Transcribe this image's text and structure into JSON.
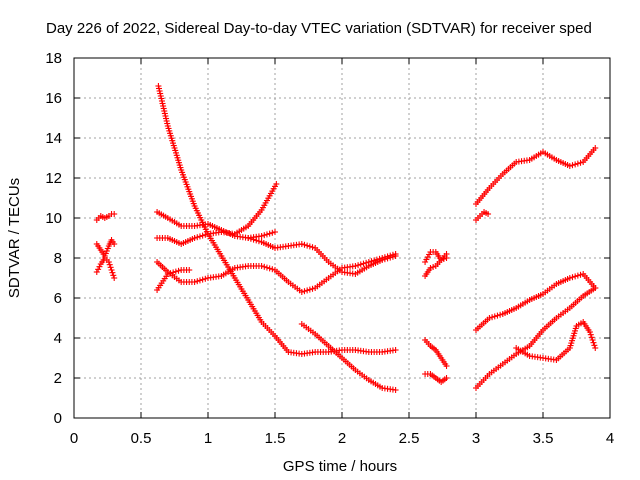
{
  "chart_data": {
    "type": "scatter",
    "title": "Day 226 of 2022, Sidereal Day-to-day VTEC variation (SDTVAR) for receiver sped",
    "xlabel": "GPS time / hours",
    "ylabel": "SDTVAR / TECUs",
    "xlim": [
      0,
      4
    ],
    "ylim": [
      0,
      18
    ],
    "xticks": [
      "0",
      "0.5",
      "1",
      "1.5",
      "2",
      "2.5",
      "3",
      "3.5",
      "4"
    ],
    "yticks": [
      "0",
      "2",
      "4",
      "6",
      "8",
      "10",
      "12",
      "14",
      "16",
      "18"
    ],
    "grid": true,
    "marker": "plus",
    "color": "#ff0000",
    "series": [
      {
        "name": "s01",
        "x": [
          0.63,
          0.7,
          0.8,
          0.9,
          1.0,
          1.1,
          1.2,
          1.3,
          1.4,
          1.5
        ],
        "y": [
          16.6,
          14.6,
          12.4,
          10.6,
          9.2,
          8.1,
          7.0,
          5.9,
          4.8,
          4.1
        ]
      },
      {
        "name": "s02",
        "x": [
          1.5,
          1.6,
          1.7,
          1.8,
          1.9,
          2.0,
          2.1,
          2.2,
          2.3,
          2.4
        ],
        "y": [
          4.1,
          3.3,
          3.2,
          3.3,
          3.3,
          3.4,
          3.4,
          3.3,
          3.3,
          3.4
        ]
      },
      {
        "name": "s03",
        "x": [
          0.62,
          0.7,
          0.8,
          0.9,
          1.0,
          1.1,
          1.2,
          1.3,
          1.4,
          1.5
        ],
        "y": [
          10.3,
          10.0,
          9.6,
          9.6,
          9.7,
          9.4,
          9.1,
          9.0,
          9.1,
          9.3
        ]
      },
      {
        "name": "s04",
        "x": [
          0.62,
          0.7,
          0.8,
          0.9,
          1.0,
          1.1,
          1.2,
          1.3,
          1.4,
          1.51
        ],
        "y": [
          9.0,
          9.0,
          8.7,
          9.0,
          9.2,
          9.3,
          9.2,
          9.6,
          10.4,
          11.7
        ]
      },
      {
        "name": "s05",
        "x": [
          1.3,
          1.4,
          1.5,
          1.6,
          1.7,
          1.8,
          1.9,
          2.0,
          2.1,
          2.2,
          2.3,
          2.4
        ],
        "y": [
          9.0,
          8.8,
          8.5,
          8.6,
          8.7,
          8.5,
          7.8,
          7.3,
          7.2,
          7.6,
          7.9,
          8.1
        ]
      },
      {
        "name": "s06",
        "x": [
          0.62,
          0.7,
          0.8,
          0.9,
          1.0,
          1.1,
          1.2,
          1.3,
          1.4,
          1.5,
          1.6,
          1.7,
          1.8,
          1.9,
          2.0,
          2.1,
          2.2,
          2.3,
          2.4
        ],
        "y": [
          7.8,
          7.3,
          6.8,
          6.8,
          7.0,
          7.1,
          7.5,
          7.6,
          7.6,
          7.4,
          6.8,
          6.3,
          6.5,
          7.0,
          7.5,
          7.6,
          7.8,
          8.0,
          8.2
        ]
      },
      {
        "name": "s07",
        "x": [
          0.62,
          0.7,
          0.8,
          0.86
        ],
        "y": [
          6.4,
          7.2,
          7.4,
          7.4
        ]
      },
      {
        "name": "s08",
        "x": [
          1.7,
          1.8,
          1.9,
          2.0,
          2.1,
          2.2,
          2.3,
          2.4
        ],
        "y": [
          4.7,
          4.2,
          3.6,
          3.0,
          2.4,
          1.9,
          1.5,
          1.4
        ]
      },
      {
        "name": "s09",
        "x": [
          0.17,
          0.2,
          0.23,
          0.26,
          0.28,
          0.3
        ],
        "y": [
          9.9,
          10.1,
          10.0,
          10.1,
          10.2,
          10.2
        ]
      },
      {
        "name": "s10",
        "x": [
          0.17,
          0.2,
          0.23,
          0.26,
          0.28,
          0.3
        ],
        "y": [
          8.7,
          8.4,
          8.1,
          8.6,
          8.9,
          8.7
        ]
      },
      {
        "name": "s11",
        "x": [
          0.17,
          0.2,
          0.23,
          0.26,
          0.28,
          0.3
        ],
        "y": [
          7.3,
          7.7,
          8.0,
          7.8,
          7.4,
          7.0
        ]
      },
      {
        "name": "s12",
        "x": [
          2.62,
          2.66,
          2.7,
          2.74,
          2.78
        ],
        "y": [
          7.8,
          8.3,
          8.3,
          7.9,
          8.2
        ]
      },
      {
        "name": "s13",
        "x": [
          2.62,
          2.66,
          2.7,
          2.74,
          2.78
        ],
        "y": [
          7.1,
          7.5,
          7.6,
          7.9,
          8.0
        ]
      },
      {
        "name": "s14",
        "x": [
          2.62,
          2.66,
          2.7,
          2.74,
          2.78
        ],
        "y": [
          3.9,
          3.6,
          3.4,
          3.0,
          2.6
        ]
      },
      {
        "name": "s15",
        "x": [
          2.62,
          2.66,
          2.7,
          2.74,
          2.78
        ],
        "y": [
          2.2,
          2.2,
          2.0,
          1.8,
          2.0
        ]
      },
      {
        "name": "s16",
        "x": [
          3.0,
          3.1,
          3.2,
          3.3,
          3.4,
          3.5,
          3.6,
          3.7,
          3.8,
          3.89
        ],
        "y": [
          10.7,
          11.5,
          12.2,
          12.8,
          12.9,
          13.3,
          12.9,
          12.6,
          12.8,
          13.5
        ]
      },
      {
        "name": "s17",
        "x": [
          3.0,
          3.03,
          3.06,
          3.09
        ],
        "y": [
          9.9,
          10.1,
          10.3,
          10.2
        ]
      },
      {
        "name": "s18",
        "x": [
          3.0,
          3.1,
          3.2,
          3.3,
          3.4,
          3.5,
          3.6,
          3.7,
          3.8,
          3.89
        ],
        "y": [
          4.4,
          5.0,
          5.2,
          5.5,
          5.9,
          6.2,
          6.7,
          7.0,
          7.2,
          6.5
        ]
      },
      {
        "name": "s19",
        "x": [
          3.0,
          3.1,
          3.2,
          3.3,
          3.4,
          3.5,
          3.6,
          3.7,
          3.8,
          3.89
        ],
        "y": [
          1.5,
          2.2,
          2.7,
          3.2,
          3.6,
          4.4,
          5.0,
          5.5,
          6.1,
          6.5
        ]
      },
      {
        "name": "s20",
        "x": [
          3.3,
          3.4,
          3.5,
          3.6,
          3.7,
          3.75,
          3.8,
          3.85,
          3.89
        ],
        "y": [
          3.5,
          3.1,
          3.0,
          2.9,
          3.5,
          4.6,
          4.8,
          4.3,
          3.5
        ]
      }
    ]
  }
}
